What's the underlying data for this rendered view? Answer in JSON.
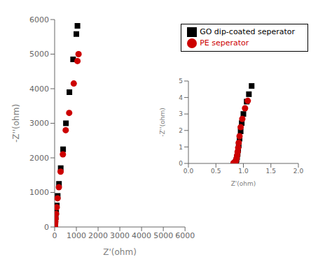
{
  "chart_data": [
    {
      "type": "scatter",
      "xlabel": "Z'(ohm)",
      "ylabel": "-Z''(ohm)",
      "xlim": [
        0,
        6000
      ],
      "ylim": [
        0,
        6000
      ],
      "xticks": [
        0,
        1000,
        2000,
        3000,
        4000,
        5000,
        6000
      ],
      "yticks": [
        0,
        1000,
        2000,
        3000,
        4000,
        5000,
        6000
      ],
      "legend": "upper right",
      "series": [
        {
          "name": "GO dip-coated seperator",
          "color": "#000000",
          "marker": "square",
          "x": [
            5,
            8,
            12,
            18,
            25,
            35,
            50,
            70,
            100,
            140,
            200,
            280,
            390,
            520,
            680,
            850,
            1000,
            1050
          ],
          "values": [
            10,
            20,
            40,
            70,
            110,
            180,
            280,
            420,
            620,
            900,
            1250,
            1700,
            2250,
            3000,
            3900,
            4850,
            5580,
            5820
          ]
        },
        {
          "name": "PE seperator",
          "color": "#cc0000",
          "marker": "circle",
          "x": [
            4,
            7,
            10,
            15,
            22,
            30,
            45,
            65,
            95,
            135,
            195,
            275,
            380,
            510,
            670,
            880,
            1050,
            1100
          ],
          "values": [
            8,
            18,
            35,
            60,
            95,
            155,
            245,
            380,
            570,
            830,
            1150,
            1600,
            2100,
            2800,
            3300,
            4150,
            4800,
            5000
          ]
        }
      ]
    },
    {
      "type": "scatter",
      "xlabel": "Z'(ohm)",
      "ylabel": "-Z''(ohm)",
      "xlim": [
        0,
        2
      ],
      "ylim": [
        0,
        5
      ],
      "xticks": [
        {
          "value": 0,
          "label": "0.0"
        },
        0.5,
        {
          "value": 1,
          "label": "1.0"
        },
        1.5,
        {
          "value": 2,
          "label": "2.0"
        }
      ],
      "yticks": [
        0,
        1,
        2,
        3,
        4,
        5
      ],
      "series": [
        {
          "color": "#000000",
          "marker": "square",
          "x": [
            0.84,
            0.855,
            0.865,
            0.875,
            0.885,
            0.895,
            0.905,
            0.915,
            0.93,
            0.95,
            0.97,
            1.0,
            1.06,
            1.1,
            1.15
          ],
          "values": [
            0.02,
            0.06,
            0.12,
            0.22,
            0.38,
            0.58,
            0.82,
            1.1,
            1.5,
            1.95,
            2.45,
            3.0,
            3.75,
            4.2,
            4.7
          ]
        },
        {
          "color": "#cc0000",
          "marker": "circle",
          "x": [
            0.82,
            0.84,
            0.855,
            0.865,
            0.875,
            0.885,
            0.895,
            0.905,
            0.915,
            0.93,
            0.95,
            0.98,
            1.03,
            1.08
          ],
          "values": [
            0.02,
            0.05,
            0.1,
            0.18,
            0.3,
            0.48,
            0.7,
            0.95,
            1.25,
            1.65,
            2.2,
            2.7,
            3.35,
            3.8
          ]
        }
      ]
    }
  ]
}
